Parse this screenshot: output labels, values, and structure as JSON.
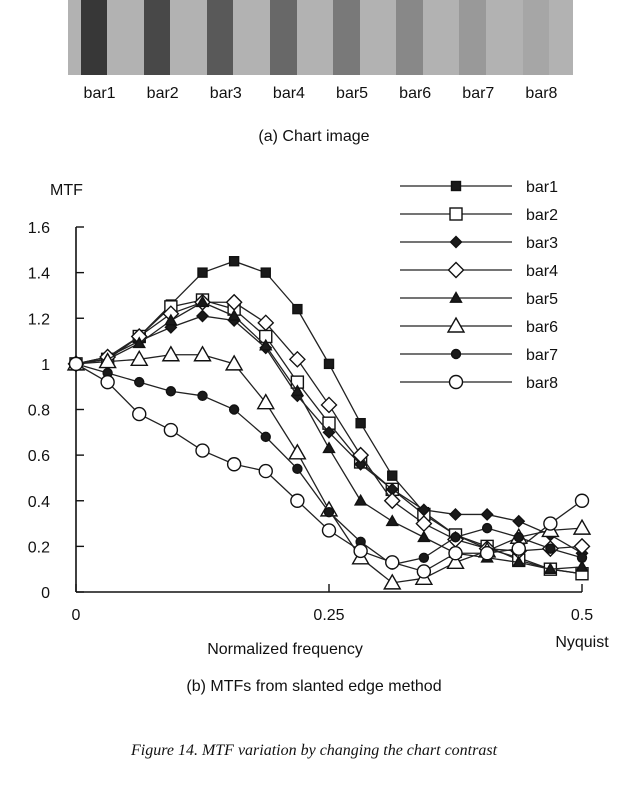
{
  "chart_image": {
    "caption": "(a) Chart image",
    "bars": [
      {
        "label": "bar1",
        "contrast": 1.0
      },
      {
        "label": "bar2",
        "contrast": 0.86
      },
      {
        "label": "bar3",
        "contrast": 0.72
      },
      {
        "label": "bar4",
        "contrast": 0.6
      },
      {
        "label": "bar5",
        "contrast": 0.46
      },
      {
        "label": "bar6",
        "contrast": 0.34
      },
      {
        "label": "bar7",
        "contrast": 0.2
      },
      {
        "label": "bar8",
        "contrast": 0.1
      }
    ]
  },
  "figure_caption": "Figure 14. MTF variation by changing the chart contrast",
  "chart_data": {
    "type": "line",
    "title": "(b)  MTFs from slanted edge method",
    "xlabel": "Normalized frequency",
    "ylabel": "MTF",
    "x_end_label": "Nyquist",
    "xlim": [
      0,
      0.5
    ],
    "ylim": [
      0,
      1.6
    ],
    "xticks": [
      0,
      0.25,
      0.5
    ],
    "xtick_labels": [
      "0",
      "0.25",
      "0.5"
    ],
    "yticks": [
      0,
      0.2,
      0.4,
      0.6,
      0.8,
      1.0,
      1.2,
      1.4,
      1.6
    ],
    "ytick_labels": [
      "0",
      "0.2",
      "0.4",
      "0.6",
      "0.8",
      "1",
      "1.2",
      "1.4",
      "1.6"
    ],
    "grid": false,
    "legend_position": "top-right",
    "x": [
      0,
      0.03125,
      0.0625,
      0.09375,
      0.125,
      0.15625,
      0.1875,
      0.21875,
      0.25,
      0.28125,
      0.3125,
      0.34375,
      0.375,
      0.40625,
      0.4375,
      0.46875,
      0.5
    ],
    "series": [
      {
        "name": "bar1",
        "marker": "square-filled",
        "values": [
          1.0,
          1.02,
          1.12,
          1.26,
          1.4,
          1.45,
          1.4,
          1.24,
          1.0,
          0.74,
          0.51,
          0.35,
          0.25,
          0.19,
          0.15,
          0.1,
          0.08
        ]
      },
      {
        "name": "bar2",
        "marker": "square-open",
        "values": [
          1.0,
          1.02,
          1.12,
          1.25,
          1.28,
          1.24,
          1.12,
          0.92,
          0.74,
          0.57,
          0.45,
          0.34,
          0.25,
          0.2,
          0.14,
          0.1,
          0.08
        ]
      },
      {
        "name": "bar3",
        "marker": "diamond-filled",
        "values": [
          1.0,
          1.03,
          1.1,
          1.16,
          1.21,
          1.19,
          1.07,
          0.86,
          0.7,
          0.56,
          0.45,
          0.36,
          0.34,
          0.34,
          0.31,
          0.25,
          0.17
        ]
      },
      {
        "name": "bar4",
        "marker": "diamond-open",
        "values": [
          1.0,
          1.03,
          1.12,
          1.22,
          1.27,
          1.27,
          1.18,
          1.02,
          0.82,
          0.6,
          0.4,
          0.3,
          0.23,
          0.19,
          0.18,
          0.19,
          0.2
        ]
      },
      {
        "name": "bar5",
        "marker": "triangle-filled",
        "values": [
          1.0,
          1.02,
          1.09,
          1.19,
          1.27,
          1.21,
          1.08,
          0.88,
          0.63,
          0.4,
          0.31,
          0.24,
          0.17,
          0.15,
          0.13,
          0.1,
          0.11
        ]
      },
      {
        "name": "bar6",
        "marker": "triangle-open",
        "values": [
          1.0,
          1.01,
          1.02,
          1.04,
          1.04,
          1.0,
          0.83,
          0.61,
          0.36,
          0.15,
          0.04,
          0.06,
          0.13,
          0.18,
          0.24,
          0.27,
          0.28
        ]
      },
      {
        "name": "bar7",
        "marker": "circle-filled",
        "values": [
          1.0,
          0.96,
          0.92,
          0.88,
          0.86,
          0.8,
          0.68,
          0.54,
          0.35,
          0.22,
          0.12,
          0.15,
          0.24,
          0.28,
          0.24,
          0.19,
          0.15
        ]
      },
      {
        "name": "bar8",
        "marker": "circle-open",
        "values": [
          1.0,
          0.92,
          0.78,
          0.71,
          0.62,
          0.56,
          0.53,
          0.4,
          0.27,
          0.18,
          0.13,
          0.09,
          0.17,
          0.17,
          0.19,
          0.3,
          0.4
        ]
      }
    ]
  }
}
